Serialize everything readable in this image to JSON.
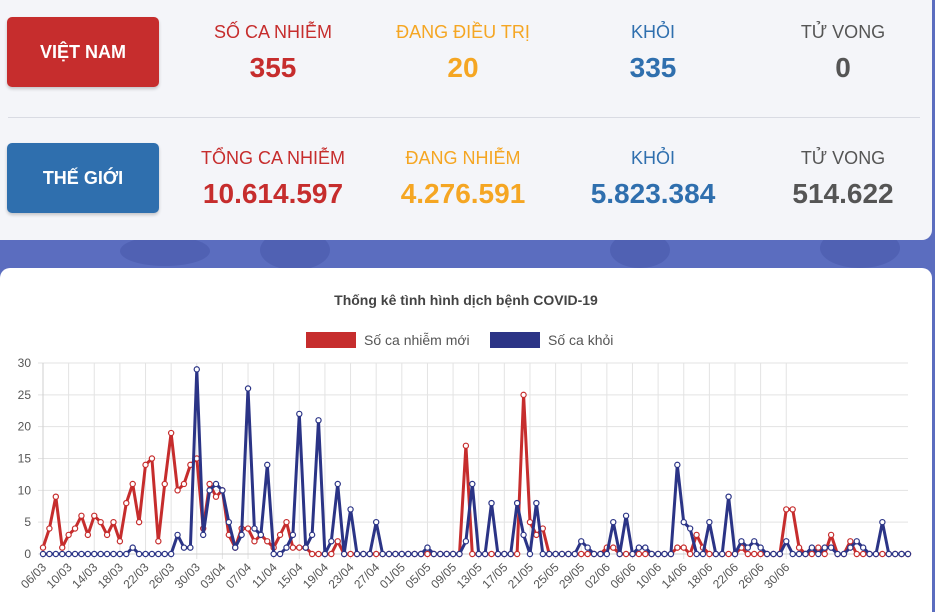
{
  "vietnam": {
    "label": "VIỆT NAM",
    "color": "#c62d2d",
    "cases_label": "SỐ CA NHIỄM",
    "cases": "355",
    "treating_label": "ĐANG ĐIỀU TRỊ",
    "treating": "20",
    "recovered_label": "KHỎI",
    "recovered": "335",
    "deaths_label": "TỬ VONG",
    "deaths": "0"
  },
  "world": {
    "label": "THẾ GIỚI",
    "color": "#2f6fae",
    "cases_label": "TỔNG CA NHIỄM",
    "cases": "10.614.597",
    "active_label": "ĐANG NHIỄM",
    "active": "4.276.591",
    "recovered_label": "KHỎI",
    "recovered": "5.823.384",
    "deaths_label": "TỬ VONG",
    "deaths": "514.622"
  },
  "colors": {
    "red": "#c62d2d",
    "orange": "#f5a623",
    "blue": "#2f6fae",
    "gray": "#555555"
  },
  "chart_data": {
    "type": "line",
    "title": "Thống kê tình hình dịch bệnh COVID-19",
    "xlabel": "",
    "ylabel": "",
    "ylim": [
      0,
      30
    ],
    "y_ticks": [
      0,
      5,
      10,
      15,
      20,
      25,
      30
    ],
    "x_tick_labels": [
      "06/03",
      "10/03",
      "14/03",
      "18/03",
      "22/03",
      "26/03",
      "30/03",
      "03/04",
      "07/04",
      "11/04",
      "15/04",
      "19/04",
      "23/04",
      "27/04",
      "01/05",
      "05/05",
      "09/05",
      "13/05",
      "17/05",
      "21/05",
      "25/05",
      "29/05",
      "02/06",
      "06/06",
      "10/06",
      "14/06",
      "18/06",
      "22/06",
      "26/06",
      "30/06"
    ],
    "start_date": "06/03",
    "grid": true,
    "legend_position": "top",
    "series": [
      {
        "name": "Số ca nhiễm mới",
        "color": "#c62d2d",
        "values": [
          1,
          4,
          9,
          1,
          3,
          4,
          6,
          3,
          6,
          5,
          3,
          5,
          2,
          8,
          11,
          5,
          14,
          15,
          2,
          11,
          19,
          10,
          11,
          14,
          15,
          4,
          11,
          9,
          10,
          3,
          1,
          4,
          4,
          2,
          3,
          2,
          1,
          3,
          5,
          1,
          1,
          1,
          0,
          0,
          0,
          0,
          2,
          0,
          0,
          0,
          0,
          0,
          0,
          0,
          0,
          0,
          0,
          0,
          0,
          0,
          0,
          0,
          0,
          0,
          0,
          0,
          17,
          0,
          0,
          0,
          0,
          0,
          0,
          0,
          0,
          25,
          5,
          3,
          4,
          0,
          0,
          0,
          0,
          0,
          0,
          0,
          0,
          0,
          1,
          1,
          0,
          0,
          0,
          0,
          0,
          0,
          0,
          0,
          0,
          1,
          1,
          0,
          3,
          1,
          0,
          0,
          0,
          0,
          0,
          1,
          0,
          0,
          0,
          0,
          0,
          0,
          7,
          7,
          1,
          0,
          0,
          1,
          0,
          3,
          0,
          0,
          2,
          0,
          0,
          0,
          0,
          0,
          0,
          0,
          0,
          0
        ]
      },
      {
        "name": "Số ca khỏi",
        "color": "#2b3486",
        "values": [
          0,
          0,
          0,
          0,
          0,
          0,
          0,
          0,
          0,
          0,
          0,
          0,
          0,
          0,
          1,
          0,
          0,
          0,
          0,
          0,
          0,
          3,
          1,
          1,
          29,
          3,
          10,
          11,
          10,
          5,
          1,
          3,
          26,
          4,
          3,
          14,
          0,
          0,
          1,
          3,
          22,
          1,
          3,
          21,
          0,
          2,
          11,
          0,
          7,
          0,
          0,
          0,
          5,
          0,
          0,
          0,
          0,
          0,
          0,
          0,
          1,
          0,
          0,
          0,
          0,
          0,
          2,
          11,
          0,
          0,
          8,
          0,
          0,
          0,
          8,
          3,
          0,
          8,
          0,
          0,
          0,
          0,
          0,
          0,
          2,
          1,
          0,
          0,
          0,
          5,
          0,
          6,
          0,
          1,
          1,
          0,
          0,
          0,
          0,
          14,
          5,
          4,
          0,
          0,
          5,
          0,
          0,
          9,
          0,
          2,
          1,
          2,
          1,
          0,
          0,
          0,
          2,
          0,
          0,
          0,
          1,
          0,
          1,
          1,
          0,
          0,
          1,
          2,
          1,
          0,
          0,
          5,
          0,
          0,
          0,
          0
        ]
      }
    ]
  }
}
